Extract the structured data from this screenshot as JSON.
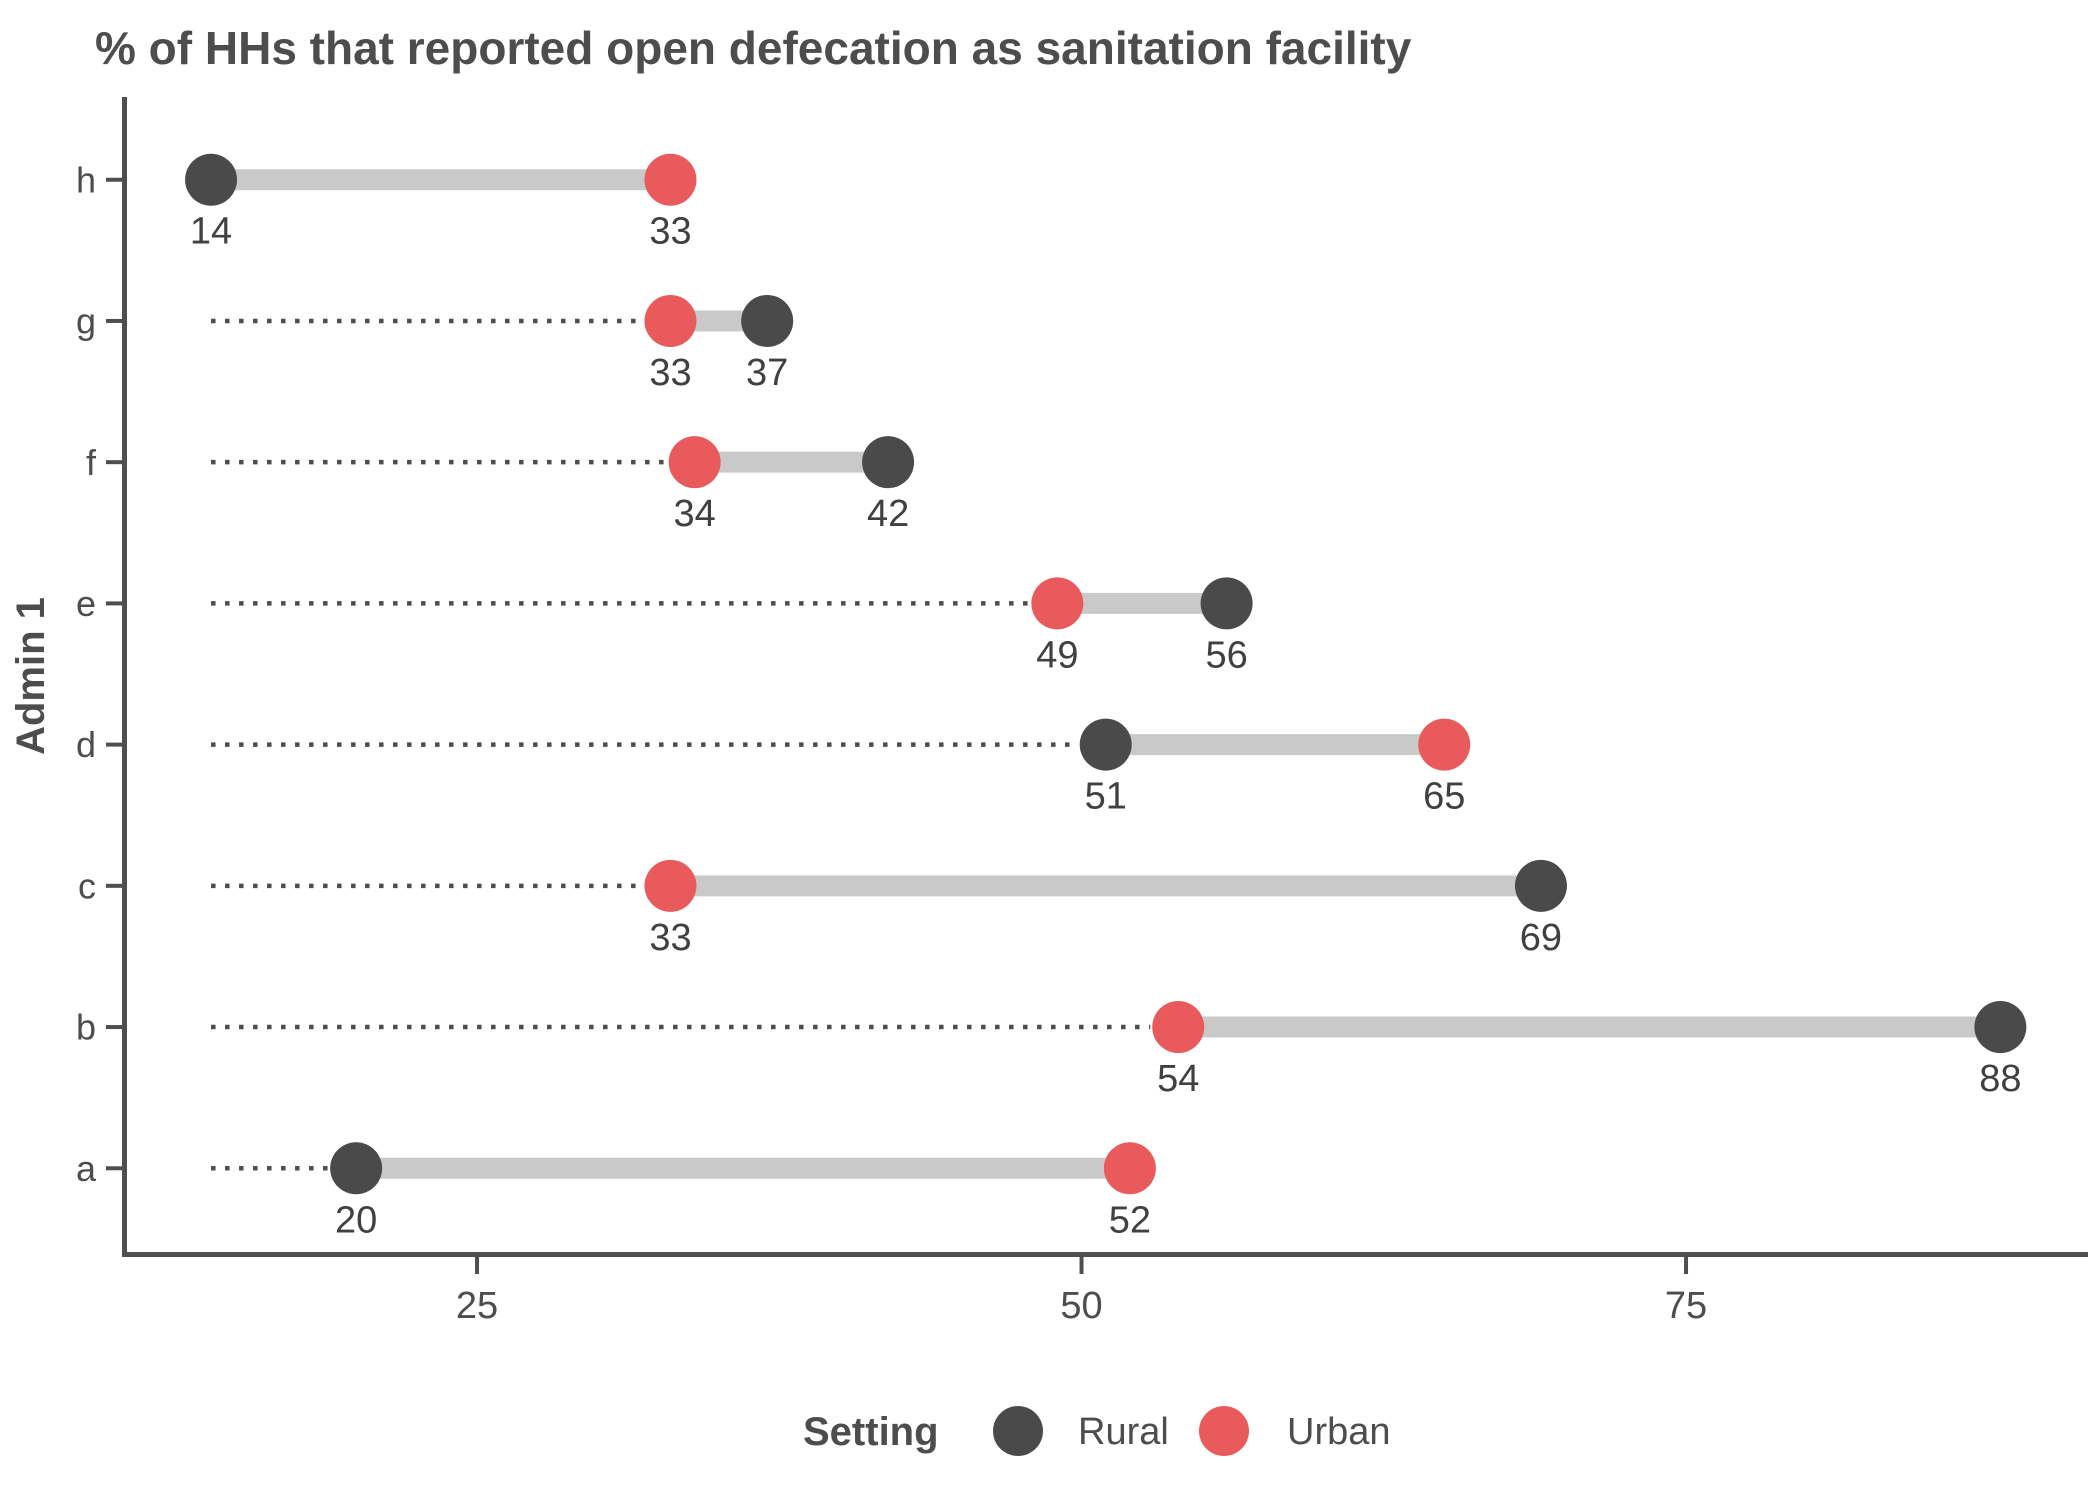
{
  "title": "% of HHs that reported open defecation as sanitation facility",
  "y_axis_title": "Admin 1",
  "legend": {
    "title": "Setting",
    "items": [
      {
        "label": "Rural",
        "color": "#4a4a4a"
      },
      {
        "label": "Urban",
        "color": "#e95a5c"
      }
    ]
  },
  "chart_data": {
    "type": "dumbbell",
    "orientation": "horizontal",
    "title": "% of HHs that reported open defecation as sanitation facility",
    "ylabel": "Admin 1",
    "xlabel": "",
    "categories_top_to_bottom": [
      "h",
      "g",
      "f",
      "e",
      "d",
      "c",
      "b",
      "a"
    ],
    "series": [
      {
        "name": "Rural",
        "color": "#4a4a4a",
        "values": [
          14,
          37,
          42,
          56,
          51,
          69,
          88,
          20
        ]
      },
      {
        "name": "Urban",
        "color": "#e95a5c",
        "values": [
          33,
          33,
          34,
          49,
          65,
          33,
          54,
          52
        ]
      }
    ],
    "x_ticks": [
      25,
      50,
      75
    ],
    "xlim": [
      10.4,
      91.5
    ],
    "grid": false,
    "value_labels_shown": true,
    "value_label_color": "#404040",
    "connector_color": "#c9c9c9",
    "axis_color": "#4e4e4e",
    "tick_label_color": "#4d4d4d",
    "leader_line": {
      "style": "dotted",
      "from_value": 14,
      "color": "#4d4d4d"
    },
    "legend_position": "bottom"
  }
}
